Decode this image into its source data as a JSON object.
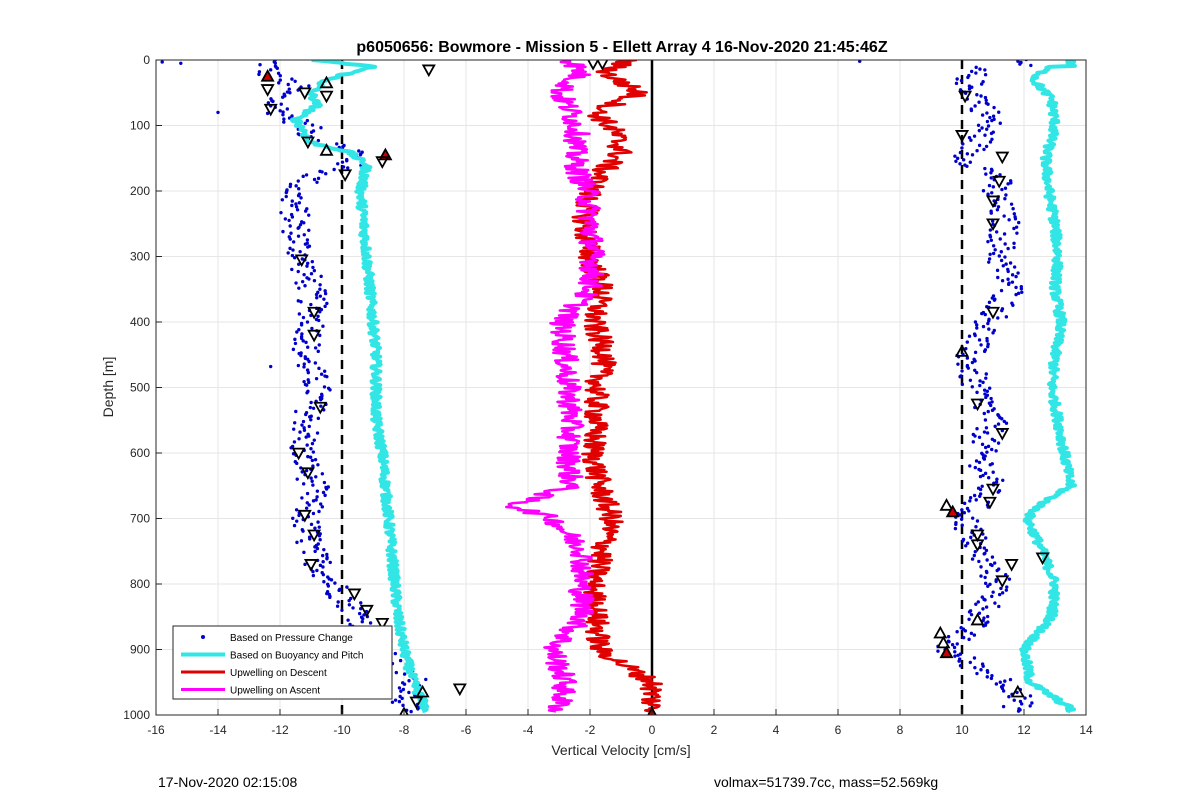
{
  "chart_data": {
    "type": "scatter",
    "title": "p6050656: Bowmore - Mission 5 - Ellett Array 4 16-Nov-2020 21:45:46Z",
    "xlabel": "Vertical Velocity [cm/s]",
    "ylabel": "Depth [m]",
    "xlim": [
      -16,
      14
    ],
    "ylim": [
      0,
      1000
    ],
    "y_reversed": true,
    "grid": true,
    "x_ticks": [
      -16,
      -14,
      -12,
      -10,
      -8,
      -6,
      -4,
      -2,
      0,
      2,
      4,
      6,
      8,
      10,
      12,
      14
    ],
    "y_ticks": [
      0,
      100,
      200,
      300,
      400,
      500,
      600,
      700,
      800,
      900,
      1000
    ],
    "legend_position": "bottom-left",
    "series": [
      {
        "name": "Based on Pressure Change",
        "style": "dots",
        "color": "#0000cd",
        "branches": [
          {
            "depth": [
              0,
              20,
              40,
              60,
              80,
              100,
              120,
              140,
              160,
              180,
              200,
              250,
              300,
              350,
              400,
              450,
              500,
              550,
              600,
              650,
              700,
              750,
              800,
              850,
              900,
              950,
              990
            ],
            "velocity": [
              -12.3,
              -12.4,
              -11.5,
              -12.2,
              -12.0,
              -11.2,
              -10.9,
              -9.5,
              -9.8,
              -11.0,
              -11.6,
              -11.5,
              -11.3,
              -11.0,
              -10.9,
              -11.2,
              -10.8,
              -11.1,
              -11.3,
              -10.9,
              -11.2,
              -11.0,
              -10.3,
              -9.4,
              -8.9,
              -7.6,
              -8.0
            ]
          },
          {
            "depth": [
              10,
              40,
              60,
              90,
              120,
              150,
              180,
              200,
              250,
              300,
              350,
              400,
              450,
              500,
              550,
              600,
              650,
              700,
              750,
              800,
              850,
              880,
              900,
              930,
              960
            ],
            "velocity": [
              10.4,
              10.2,
              10.6,
              10.9,
              10.6,
              10.1,
              11.2,
              11.0,
              11.4,
              11.2,
              11.6,
              10.9,
              10.2,
              10.4,
              11.0,
              10.6,
              10.9,
              10.1,
              10.5,
              11.2,
              10.6,
              9.9,
              9.5,
              10.6,
              11.8
            ]
          }
        ],
        "outliers": [
          {
            "depth": 3,
            "velocity": -15.8
          },
          {
            "depth": 5,
            "velocity": -15.2
          },
          {
            "depth": 80,
            "velocity": -14.0
          },
          {
            "depth": 468,
            "velocity": -12.3
          },
          {
            "depth": 2,
            "velocity": 6.7
          }
        ]
      },
      {
        "name": "Based on Buoyancy and Pitch",
        "style": "line",
        "color": "#33e6e6",
        "branches": [
          {
            "depth": [
              0,
              10,
              30,
              50,
              70,
              90,
              110,
              125,
              140,
              160,
              180,
              200,
              250,
              300,
              350,
              400,
              450,
              500,
              550,
              600,
              650,
              700,
              750,
              800,
              850,
              900,
              950,
              990
            ],
            "velocity": [
              -11.0,
              -9.0,
              -10.5,
              -11.0,
              -10.8,
              -11.5,
              -11.2,
              -11.1,
              -9.8,
              -9.2,
              -9.3,
              -9.4,
              -9.3,
              -9.2,
              -9.1,
              -9.0,
              -8.9,
              -8.9,
              -8.9,
              -8.7,
              -8.6,
              -8.5,
              -8.4,
              -8.3,
              -8.2,
              -8.0,
              -7.7,
              -7.3
            ]
          },
          {
            "depth": [
              10,
              30,
              60,
              100,
              150,
              200,
              250,
              300,
              350,
              400,
              450,
              500,
              550,
              600,
              650,
              680,
              700,
              750,
              800,
              850,
              900,
              950,
              990
            ],
            "velocity": [
              12.8,
              12.3,
              12.9,
              13.0,
              12.7,
              12.8,
              13.0,
              13.1,
              13.0,
              13.2,
              13.0,
              12.9,
              13.1,
              13.3,
              13.5,
              12.5,
              12.1,
              12.6,
              13.0,
              12.9,
              12.0,
              12.2,
              13.5
            ]
          }
        ]
      },
      {
        "name": "Upwelling on Descent",
        "style": "line",
        "color": "#e00000",
        "depth": [
          0,
          20,
          50,
          80,
          110,
          140,
          170,
          200,
          250,
          300,
          350,
          400,
          450,
          500,
          550,
          600,
          650,
          700,
          750,
          800,
          850,
          900,
          950,
          990
        ],
        "velocity": [
          -0.8,
          -1.5,
          -0.4,
          -1.8,
          -1.2,
          -1.0,
          -1.6,
          -2.0,
          -2.2,
          -2.0,
          -1.6,
          -1.9,
          -1.5,
          -1.8,
          -1.8,
          -1.9,
          -1.7,
          -1.3,
          -1.6,
          -1.9,
          -1.8,
          -1.7,
          0.0,
          0.0
        ]
      },
      {
        "name": "Upwelling on Ascent",
        "style": "line",
        "color": "#ff00ff",
        "depth": [
          0,
          20,
          50,
          80,
          110,
          140,
          170,
          200,
          250,
          300,
          350,
          400,
          450,
          500,
          550,
          600,
          650,
          680,
          700,
          750,
          800,
          850,
          900,
          950,
          990
        ],
        "velocity": [
          -2.6,
          -2.3,
          -3.0,
          -2.6,
          -2.4,
          -2.5,
          -2.4,
          -2.1,
          -2.0,
          -1.9,
          -2.0,
          -2.9,
          -2.8,
          -2.7,
          -2.6,
          -2.7,
          -2.6,
          -4.5,
          -3.2,
          -2.2,
          -2.3,
          -2.2,
          -3.2,
          -2.8,
          -3.0
        ]
      }
    ],
    "reference_lines": [
      {
        "velocity": -10,
        "style": "dashed",
        "color": "#000000"
      },
      {
        "velocity": 0,
        "style": "solid",
        "color": "#000000"
      },
      {
        "velocity": 10,
        "style": "dashed",
        "color": "#000000"
      }
    ],
    "markers": {
      "up_triangles": [
        {
          "depth": 25,
          "velocity": -12.4
        },
        {
          "depth": 35,
          "velocity": -10.5
        },
        {
          "depth": 138,
          "velocity": -10.5
        },
        {
          "depth": 145,
          "velocity": -8.6
        },
        {
          "depth": 965,
          "velocity": -7.4
        },
        {
          "depth": 998,
          "velocity": -8.0
        },
        {
          "depth": 998,
          "velocity": 0.0
        },
        {
          "depth": 445,
          "velocity": 10.0
        },
        {
          "depth": 680,
          "velocity": 9.5
        },
        {
          "depth": 690,
          "velocity": 9.7
        },
        {
          "depth": 875,
          "velocity": 9.3
        },
        {
          "depth": 890,
          "velocity": 9.4
        },
        {
          "depth": 905,
          "velocity": 9.5
        },
        {
          "depth": 855,
          "velocity": 10.5
        },
        {
          "depth": 965,
          "velocity": 11.8
        }
      ],
      "down_triangles": [
        {
          "depth": 15,
          "velocity": -7.2
        },
        {
          "depth": 45,
          "velocity": -12.4
        },
        {
          "depth": 50,
          "velocity": -11.2
        },
        {
          "depth": 55,
          "velocity": -10.5
        },
        {
          "depth": 75,
          "velocity": -12.3
        },
        {
          "depth": 125,
          "velocity": -11.1
        },
        {
          "depth": 155,
          "velocity": -8.7
        },
        {
          "depth": 175,
          "velocity": -9.9
        },
        {
          "depth": 305,
          "velocity": -11.3
        },
        {
          "depth": 385,
          "velocity": -10.9
        },
        {
          "depth": 420,
          "velocity": -10.9
        },
        {
          "depth": 530,
          "velocity": -10.7
        },
        {
          "depth": 600,
          "velocity": -11.4
        },
        {
          "depth": 630,
          "velocity": -11.1
        },
        {
          "depth": 695,
          "velocity": -11.2
        },
        {
          "depth": 725,
          "velocity": -10.9
        },
        {
          "depth": 770,
          "velocity": -11.0
        },
        {
          "depth": 815,
          "velocity": -9.6
        },
        {
          "depth": 840,
          "velocity": -9.2
        },
        {
          "depth": 860,
          "velocity": -8.7
        },
        {
          "depth": 915,
          "velocity": -9.0
        },
        {
          "depth": 960,
          "velocity": -6.2
        },
        {
          "depth": 980,
          "velocity": -7.6
        },
        {
          "depth": 5,
          "velocity": -1.9
        },
        {
          "depth": 5,
          "velocity": -1.6
        },
        {
          "depth": 55,
          "velocity": 10.1
        },
        {
          "depth": 115,
          "velocity": 10.0
        },
        {
          "depth": 148,
          "velocity": 11.3
        },
        {
          "depth": 185,
          "velocity": 11.2
        },
        {
          "depth": 215,
          "velocity": 11.0
        },
        {
          "depth": 250,
          "velocity": 11.0
        },
        {
          "depth": 385,
          "velocity": 11.0
        },
        {
          "depth": 525,
          "velocity": 10.5
        },
        {
          "depth": 570,
          "velocity": 11.3
        },
        {
          "depth": 655,
          "velocity": 11.0
        },
        {
          "depth": 675,
          "velocity": 10.9
        },
        {
          "depth": 725,
          "velocity": 10.5
        },
        {
          "depth": 740,
          "velocity": 10.5
        },
        {
          "depth": 760,
          "velocity": 12.6
        },
        {
          "depth": 770,
          "velocity": 11.6
        },
        {
          "depth": 795,
          "velocity": 11.3
        }
      ]
    }
  },
  "footer": {
    "timestamp": "17-Nov-2020 02:15:08",
    "info": "volmax=51739.7cc, mass=52.569kg"
  }
}
